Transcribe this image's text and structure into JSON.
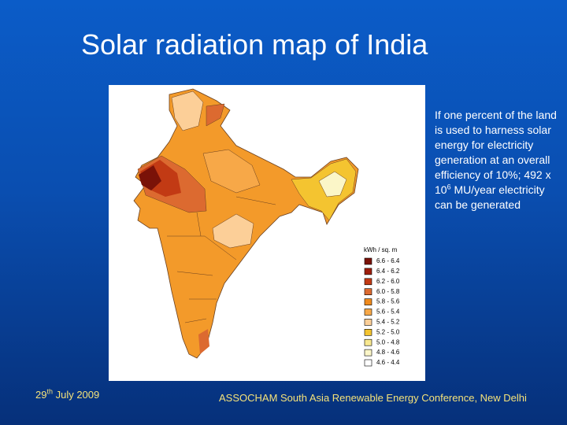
{
  "slide": {
    "title": "Solar radiation map of India",
    "map_legend": {
      "title": "kWh / sq. m",
      "items": [
        {
          "label": "6.6 - 6.4",
          "color": "#7a1208"
        },
        {
          "label": "6.4 - 6.2",
          "color": "#9e1e0c"
        },
        {
          "label": "6.2 - 6.0",
          "color": "#c23a14"
        },
        {
          "label": "6.0 - 5.8",
          "color": "#dc6a30"
        },
        {
          "label": "5.8 - 5.6",
          "color": "#f08a1c"
        },
        {
          "label": "5.6 - 5.4",
          "color": "#f7a848"
        },
        {
          "label": "5.4 - 5.2",
          "color": "#fccf98"
        },
        {
          "label": "5.2 - 5.0",
          "color": "#f4c430"
        },
        {
          "label": "5.0 - 4.8",
          "color": "#f8e890"
        },
        {
          "label": "4.8 - 4.6",
          "color": "#fbf6c8"
        },
        {
          "label": "4.6 - 4.4",
          "color": "#ffffff"
        }
      ]
    },
    "side_text": {
      "before": "If one percent of the land is used to harness solar energy for electricity generation at an overall efficiency of 10%; 492 x 10",
      "superscript": "6",
      "after": " MU/year electricity can be generated"
    },
    "footer": {
      "date": {
        "day": "29",
        "suffix": "th",
        "rest": " July 2009"
      },
      "conference": "ASSOCHAM South Asia Renewable Energy Conference, New Delhi"
    }
  }
}
